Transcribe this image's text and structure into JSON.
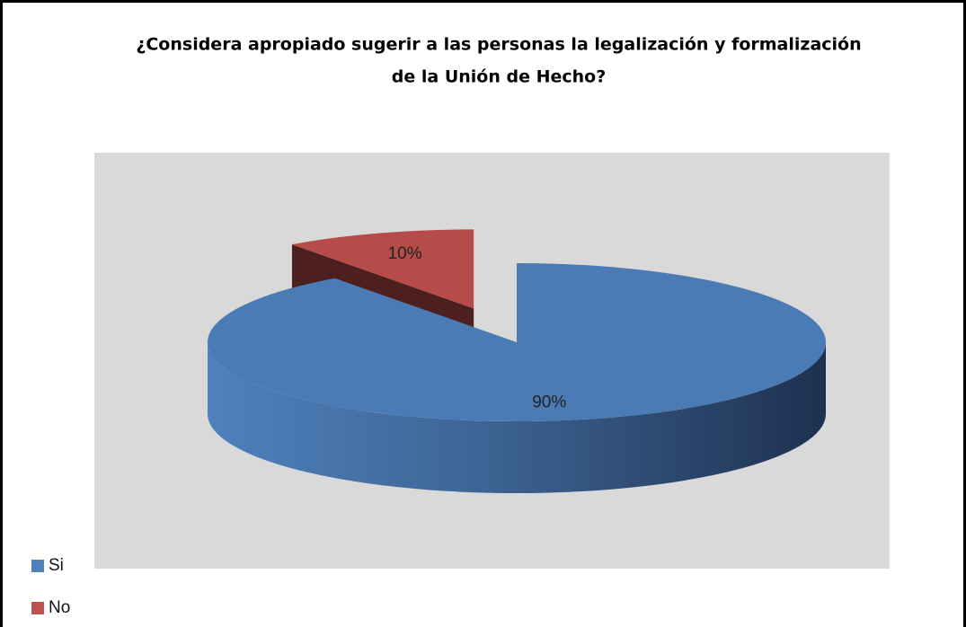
{
  "chart_data": {
    "type": "pie3d",
    "title": [
      "¿Considera apropiado sugerir a las personas la legalización y formalización",
      "de la Unión de Hecho?"
    ],
    "categories": [
      "Si",
      "No"
    ],
    "values": [
      90,
      10
    ],
    "value_labels": [
      "90%",
      "10%"
    ],
    "colors": [
      "#4f81bd",
      "#c0504d"
    ],
    "legend": "left"
  }
}
